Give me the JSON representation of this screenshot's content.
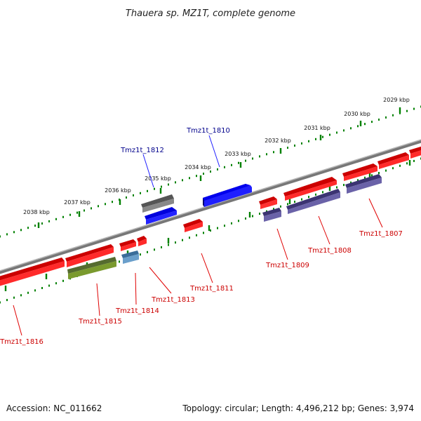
{
  "title": "Thauera sp. MZ1T, complete genome",
  "footer": {
    "accession": "Accession: NC_011662",
    "summary": "Topology: circular; Length: 4,496,212 bp; Genes: 3,974"
  },
  "colors": {
    "forward_gene": "#ff0000",
    "reverse_gene": "#ff0000",
    "blue_gene": "#0000ee",
    "grey_gene": "#666666",
    "olive_gene": "#6b8e23",
    "steel_gene": "#4682b4",
    "navy_gene": "#483d8b",
    "label_forward": "#00008b",
    "label_reverse": "#cc0000",
    "tick": "#008000",
    "backbone": "#808080"
  },
  "scale": {
    "ticks": [
      "2029 kbp",
      "2030 kbp",
      "2031 kbp",
      "2032 kbp",
      "2033 kbp",
      "2034 kbp",
      "2035 kbp",
      "2036 kbp",
      "2037 kbp",
      "2038 kbp"
    ]
  },
  "genes": {
    "forward": [
      "Tmz1t_1810",
      "Tmz1t_1812"
    ],
    "reverse": [
      "Tmz1t_1807",
      "Tmz1t_1808",
      "Tmz1t_1809",
      "Tmz1t_1811",
      "Tmz1t_1813",
      "Tmz1t_1814",
      "Tmz1t_1815",
      "Tmz1t_1816"
    ]
  }
}
